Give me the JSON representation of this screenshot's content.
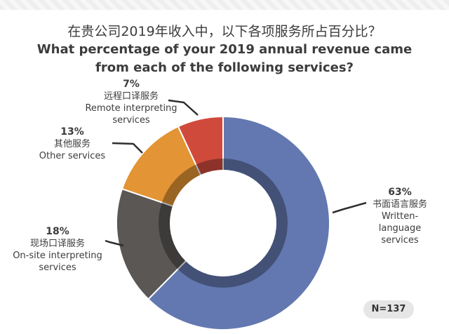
{
  "title_cn": "在贵公司2019年收入中，以下各项服务所占百分比？",
  "title_en_line1": "What percentage of your 2019 annual revenue came",
  "title_en_line2": "from each of the following services?",
  "n_badge": "N=137",
  "chart_data": {
    "type": "pie",
    "variant": "donut",
    "slices": [
      {
        "value": 63,
        "label_pct": "63%",
        "label_cn": "书面语言服务",
        "label_en": "Written-language services",
        "color": "#6378b0"
      },
      {
        "value": 18,
        "label_pct": "18%",
        "label_cn": "现场口译服务",
        "label_en": "On-site interpreting services",
        "color": "#5a5754"
      },
      {
        "value": 13,
        "label_pct": "13%",
        "label_cn": "其他服务",
        "label_en": "Other services",
        "color": "#e39434"
      },
      {
        "value": 7,
        "label_pct": "7%",
        "label_cn": "远程口译服务",
        "label_en": "Remote interpreting services",
        "color": "#d04a3c"
      }
    ]
  }
}
